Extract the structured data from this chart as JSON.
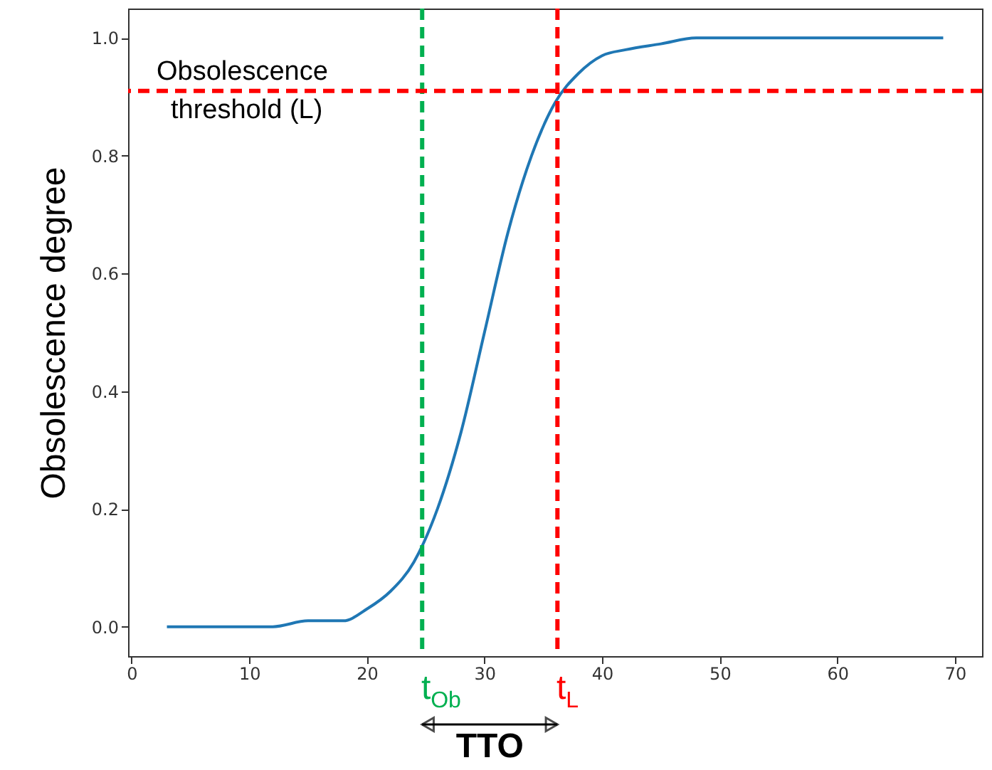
{
  "chart_data": {
    "type": "line",
    "ylabel": "Obsolescence degree",
    "x": [
      3,
      6,
      9,
      12,
      15,
      18,
      20,
      22,
      24,
      26,
      28,
      30,
      32,
      34,
      36,
      38,
      40,
      42,
      45,
      48,
      52,
      56,
      60,
      65,
      69
    ],
    "series": [
      {
        "color": "#1f77b4",
        "values": [
          0.0,
          0.0,
          0.0,
          0.0,
          0.01,
          0.01,
          0.03,
          0.06,
          0.11,
          0.2,
          0.33,
          0.5,
          0.67,
          0.8,
          0.89,
          0.94,
          0.97,
          0.98,
          0.99,
          1.0,
          1.0,
          1.0,
          1.0,
          1.0,
          1.0
        ]
      }
    ],
    "xlim": [
      -0.3,
      72.3
    ],
    "xticks": [
      0,
      10,
      20,
      30,
      40,
      50,
      60,
      70
    ],
    "ylim": [
      -0.05,
      1.05
    ],
    "yticks": [
      {
        "value": 0,
        "label": "0.0"
      },
      {
        "value": 0.2,
        "label": "0.2"
      },
      {
        "value": 0.4,
        "label": "0.4"
      },
      {
        "value": 0.6,
        "label": "0.6"
      },
      {
        "value": 0.8,
        "label": "0.8"
      },
      {
        "value": 1,
        "label": "1.0"
      }
    ],
    "ref_lines": [
      {
        "axis": "x",
        "value": 24.7,
        "label": "t$_{Ob}$",
        "color": "#00b050",
        "line_style": "dashed"
      },
      {
        "axis": "x",
        "value": 36.2,
        "label": "t$_{L}$",
        "color": "#ff0000",
        "line_style": "dashed"
      },
      {
        "axis": "y",
        "value": 0.91,
        "label": "Obsolescence threshold (L)",
        "color": "#ff0000",
        "line_style": "dashed"
      }
    ],
    "annotations": [
      "TTO"
    ],
    "grid": false,
    "marker": "none",
    "line_style": "solid"
  }
}
